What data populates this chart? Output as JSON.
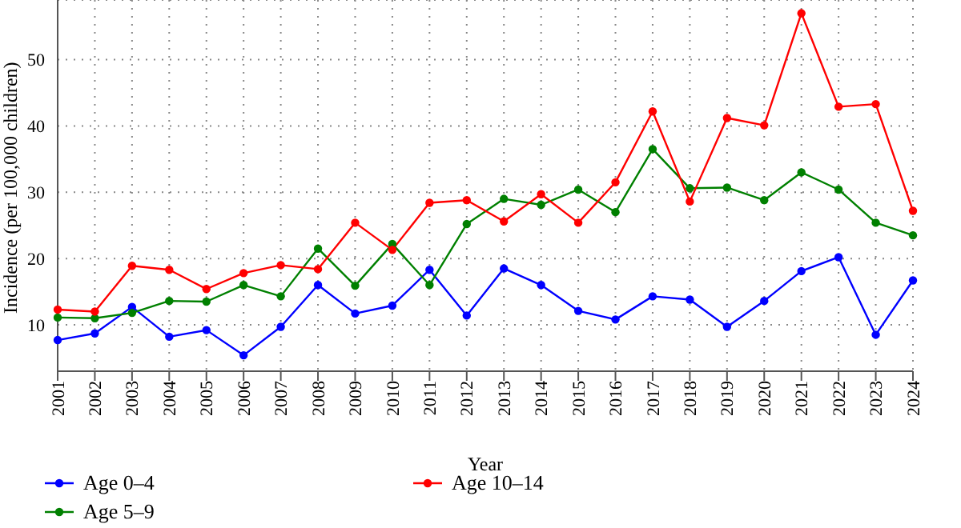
{
  "chart_data": {
    "type": "line",
    "xlabel": "Year",
    "ylabel": "Incidence (per 100,000 children)",
    "categories": [
      "2001",
      "2002",
      "2003",
      "2004",
      "2005",
      "2006",
      "2007",
      "2008",
      "2009",
      "2010",
      "2011",
      "2012",
      "2013",
      "2014",
      "2015",
      "2016",
      "2017",
      "2018",
      "2019",
      "2020",
      "2021",
      "2022",
      "2023",
      "2024"
    ],
    "series": [
      {
        "name": "Age 0–4",
        "color": "#0000ff",
        "values": [
          7.7,
          8.7,
          12.7,
          8.2,
          9.2,
          5.4,
          9.7,
          16,
          11.7,
          12.9,
          18.3,
          11.4,
          18.5,
          16,
          12.1,
          10.8,
          14.3,
          13.8,
          9.7,
          13.6,
          18.1,
          20.2,
          8.5,
          16.7
        ]
      },
      {
        "name": "Age 5–9",
        "color": "#008000",
        "values": [
          11.1,
          11,
          11.8,
          13.6,
          13.5,
          16,
          14.3,
          21.5,
          15.9,
          22.2,
          16,
          25.2,
          29,
          28.1,
          30.4,
          27,
          36.5,
          30.6,
          30.7,
          28.8,
          33,
          30.4,
          25.4,
          23.5
        ]
      },
      {
        "name": "Age 10–14",
        "color": "#ff0000",
        "values": [
          12.3,
          12,
          18.9,
          18.3,
          15.4,
          17.8,
          19,
          18.4,
          25.4,
          21.3,
          28.4,
          28.8,
          25.6,
          29.7,
          25.4,
          31.5,
          42.2,
          28.6,
          41.2,
          40.1,
          57,
          42.9,
          43.3,
          27.2
        ]
      }
    ],
    "ylim": [
      3,
      59
    ],
    "yticks": [
      10,
      20,
      30,
      40,
      50
    ],
    "grid": true,
    "legend": "bottom left",
    "marker": "circle",
    "line_style": "solid"
  }
}
